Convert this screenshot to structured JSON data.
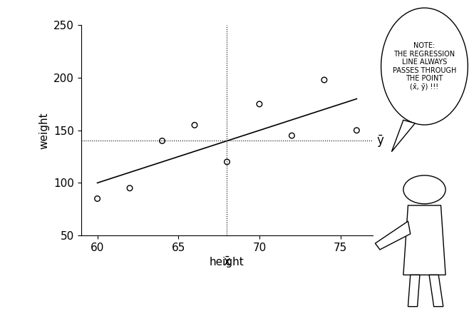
{
  "chart_data": {
    "type": "scatter",
    "x_label": "height",
    "y_label": "weight",
    "xlim": [
      59,
      77
    ],
    "ylim": [
      50,
      250
    ],
    "xticks": [
      60,
      65,
      70,
      75
    ],
    "yticks": [
      50,
      100,
      150,
      200,
      250
    ],
    "series": [
      {
        "type": "scatter",
        "marker": "o",
        "color": "#000000",
        "x": [
          60,
          62,
          64,
          66,
          68,
          70,
          72,
          74,
          76
        ],
        "values": [
          85,
          95,
          140,
          155,
          120,
          175,
          145,
          198,
          150
        ]
      },
      {
        "type": "line",
        "line_style": "solid",
        "color": "#000000",
        "x": [
          60,
          76
        ],
        "values": [
          100,
          180
        ]
      }
    ],
    "mean_x": 68,
    "mean_y": 140,
    "mean_x_label": "x̄",
    "mean_y_label": "ȳ",
    "annotation": "NOTE:\nTHE REGRESSION\nLINE ALWAYS\nPASSES THROUGH\nTHE POINT\n(x̄, ȳ) !!!"
  }
}
